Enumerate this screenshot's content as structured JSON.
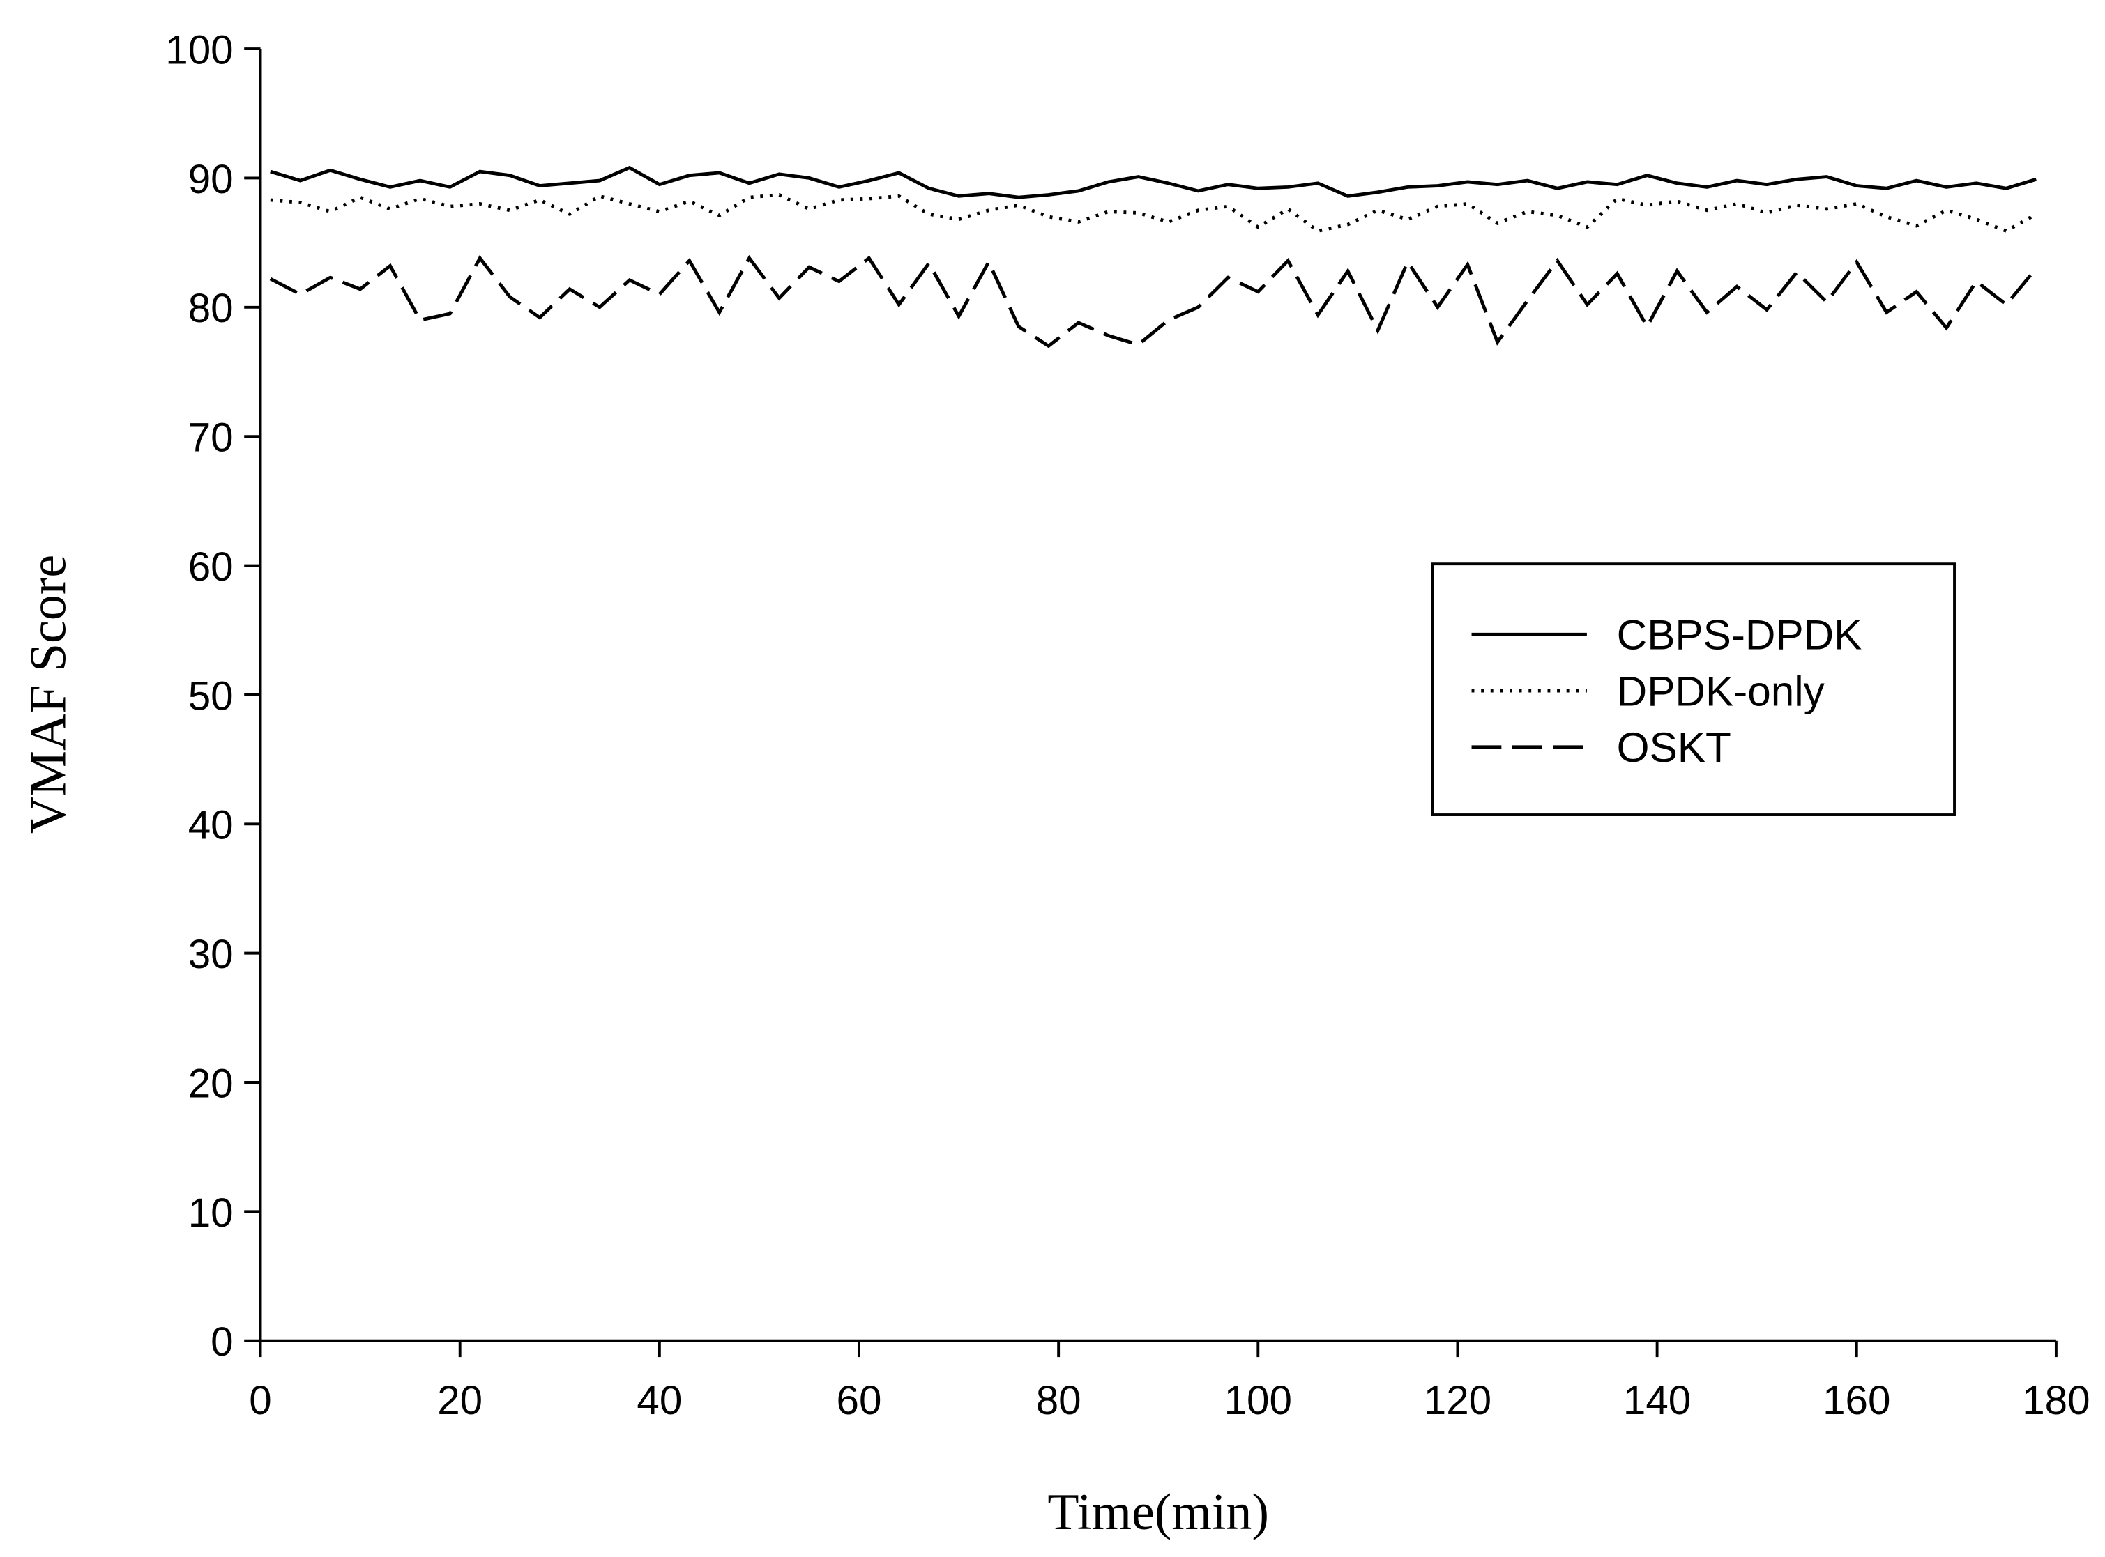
{
  "chart_data": {
    "type": "line",
    "x_label": "Time(min)",
    "y_label": "VMAF Score",
    "xlim": [
      0,
      180
    ],
    "xticks": [
      0,
      20,
      40,
      60,
      80,
      100,
      120,
      140,
      160,
      180
    ],
    "ylim": [
      0,
      100
    ],
    "yticks": [
      0,
      10,
      20,
      30,
      40,
      50,
      60,
      70,
      80,
      90,
      100
    ],
    "grid": false,
    "legend": "right",
    "x": [
      1,
      4,
      7,
      10,
      13,
      16,
      19,
      22,
      25,
      28,
      31,
      34,
      37,
      40,
      43,
      46,
      49,
      52,
      55,
      58,
      61,
      64,
      67,
      70,
      73,
      76,
      79,
      82,
      85,
      88,
      91,
      94,
      97,
      100,
      103,
      106,
      109,
      112,
      115,
      118,
      121,
      124,
      127,
      130,
      133,
      136,
      139,
      142,
      145,
      148,
      151,
      154,
      157,
      160,
      163,
      166,
      169,
      172,
      175,
      178
    ],
    "series": [
      {
        "name": "CBPS-DPDK",
        "color": "#000000",
        "dash": "solid",
        "values": [
          90.5,
          89.8,
          90.6,
          89.9,
          89.3,
          89.8,
          89.3,
          90.5,
          90.2,
          89.4,
          89.6,
          89.8,
          90.8,
          89.5,
          90.2,
          90.4,
          89.6,
          90.3,
          90.0,
          89.3,
          89.8,
          90.4,
          89.2,
          88.6,
          88.8,
          88.5,
          88.7,
          89.0,
          89.7,
          90.1,
          89.6,
          89.0,
          89.5,
          89.2,
          89.3,
          89.6,
          88.6,
          88.9,
          89.3,
          89.4,
          89.7,
          89.5,
          89.8,
          89.2,
          89.7,
          89.5,
          90.2,
          89.6,
          89.3,
          89.8,
          89.5,
          89.9,
          90.1,
          89.4,
          89.2,
          89.8,
          89.3,
          89.6,
          89.2,
          89.9
        ]
      },
      {
        "name": "DPDK-only",
        "color": "#000000",
        "dash": "dotted",
        "values": [
          88.3,
          88.1,
          87.4,
          88.5,
          87.6,
          88.4,
          87.8,
          88.0,
          87.5,
          88.3,
          87.2,
          88.6,
          88.0,
          87.4,
          88.2,
          87.1,
          88.5,
          88.7,
          87.6,
          88.3,
          88.4,
          88.6,
          87.2,
          86.8,
          87.5,
          87.9,
          87.0,
          86.6,
          87.4,
          87.3,
          86.6,
          87.5,
          87.8,
          86.2,
          87.6,
          85.9,
          86.4,
          87.5,
          86.8,
          87.8,
          88.0,
          86.5,
          87.4,
          87.1,
          86.2,
          88.4,
          87.9,
          88.2,
          87.5,
          88.0,
          87.3,
          87.9,
          87.6,
          88.0,
          87.0,
          86.3,
          87.5,
          86.8,
          85.9,
          87.2
        ]
      },
      {
        "name": "OSKT",
        "color": "#000000",
        "dash": "dashed",
        "values": [
          82.2,
          81.0,
          82.3,
          81.4,
          83.2,
          79.0,
          79.5,
          83.8,
          80.8,
          79.2,
          81.4,
          80.0,
          82.1,
          81.0,
          83.6,
          79.6,
          83.8,
          80.7,
          83.1,
          82.0,
          83.8,
          80.2,
          83.4,
          79.3,
          83.5,
          78.5,
          77.0,
          78.8,
          77.8,
          77.1,
          79.0,
          80.0,
          82.3,
          81.2,
          83.6,
          79.4,
          82.8,
          78.2,
          83.5,
          80.0,
          83.3,
          77.3,
          80.5,
          83.6,
          80.2,
          82.6,
          78.5,
          82.8,
          79.6,
          81.6,
          79.8,
          82.7,
          80.4,
          83.5,
          79.6,
          81.2,
          78.4,
          82.0,
          80.2,
          83.0
        ]
      }
    ]
  }
}
